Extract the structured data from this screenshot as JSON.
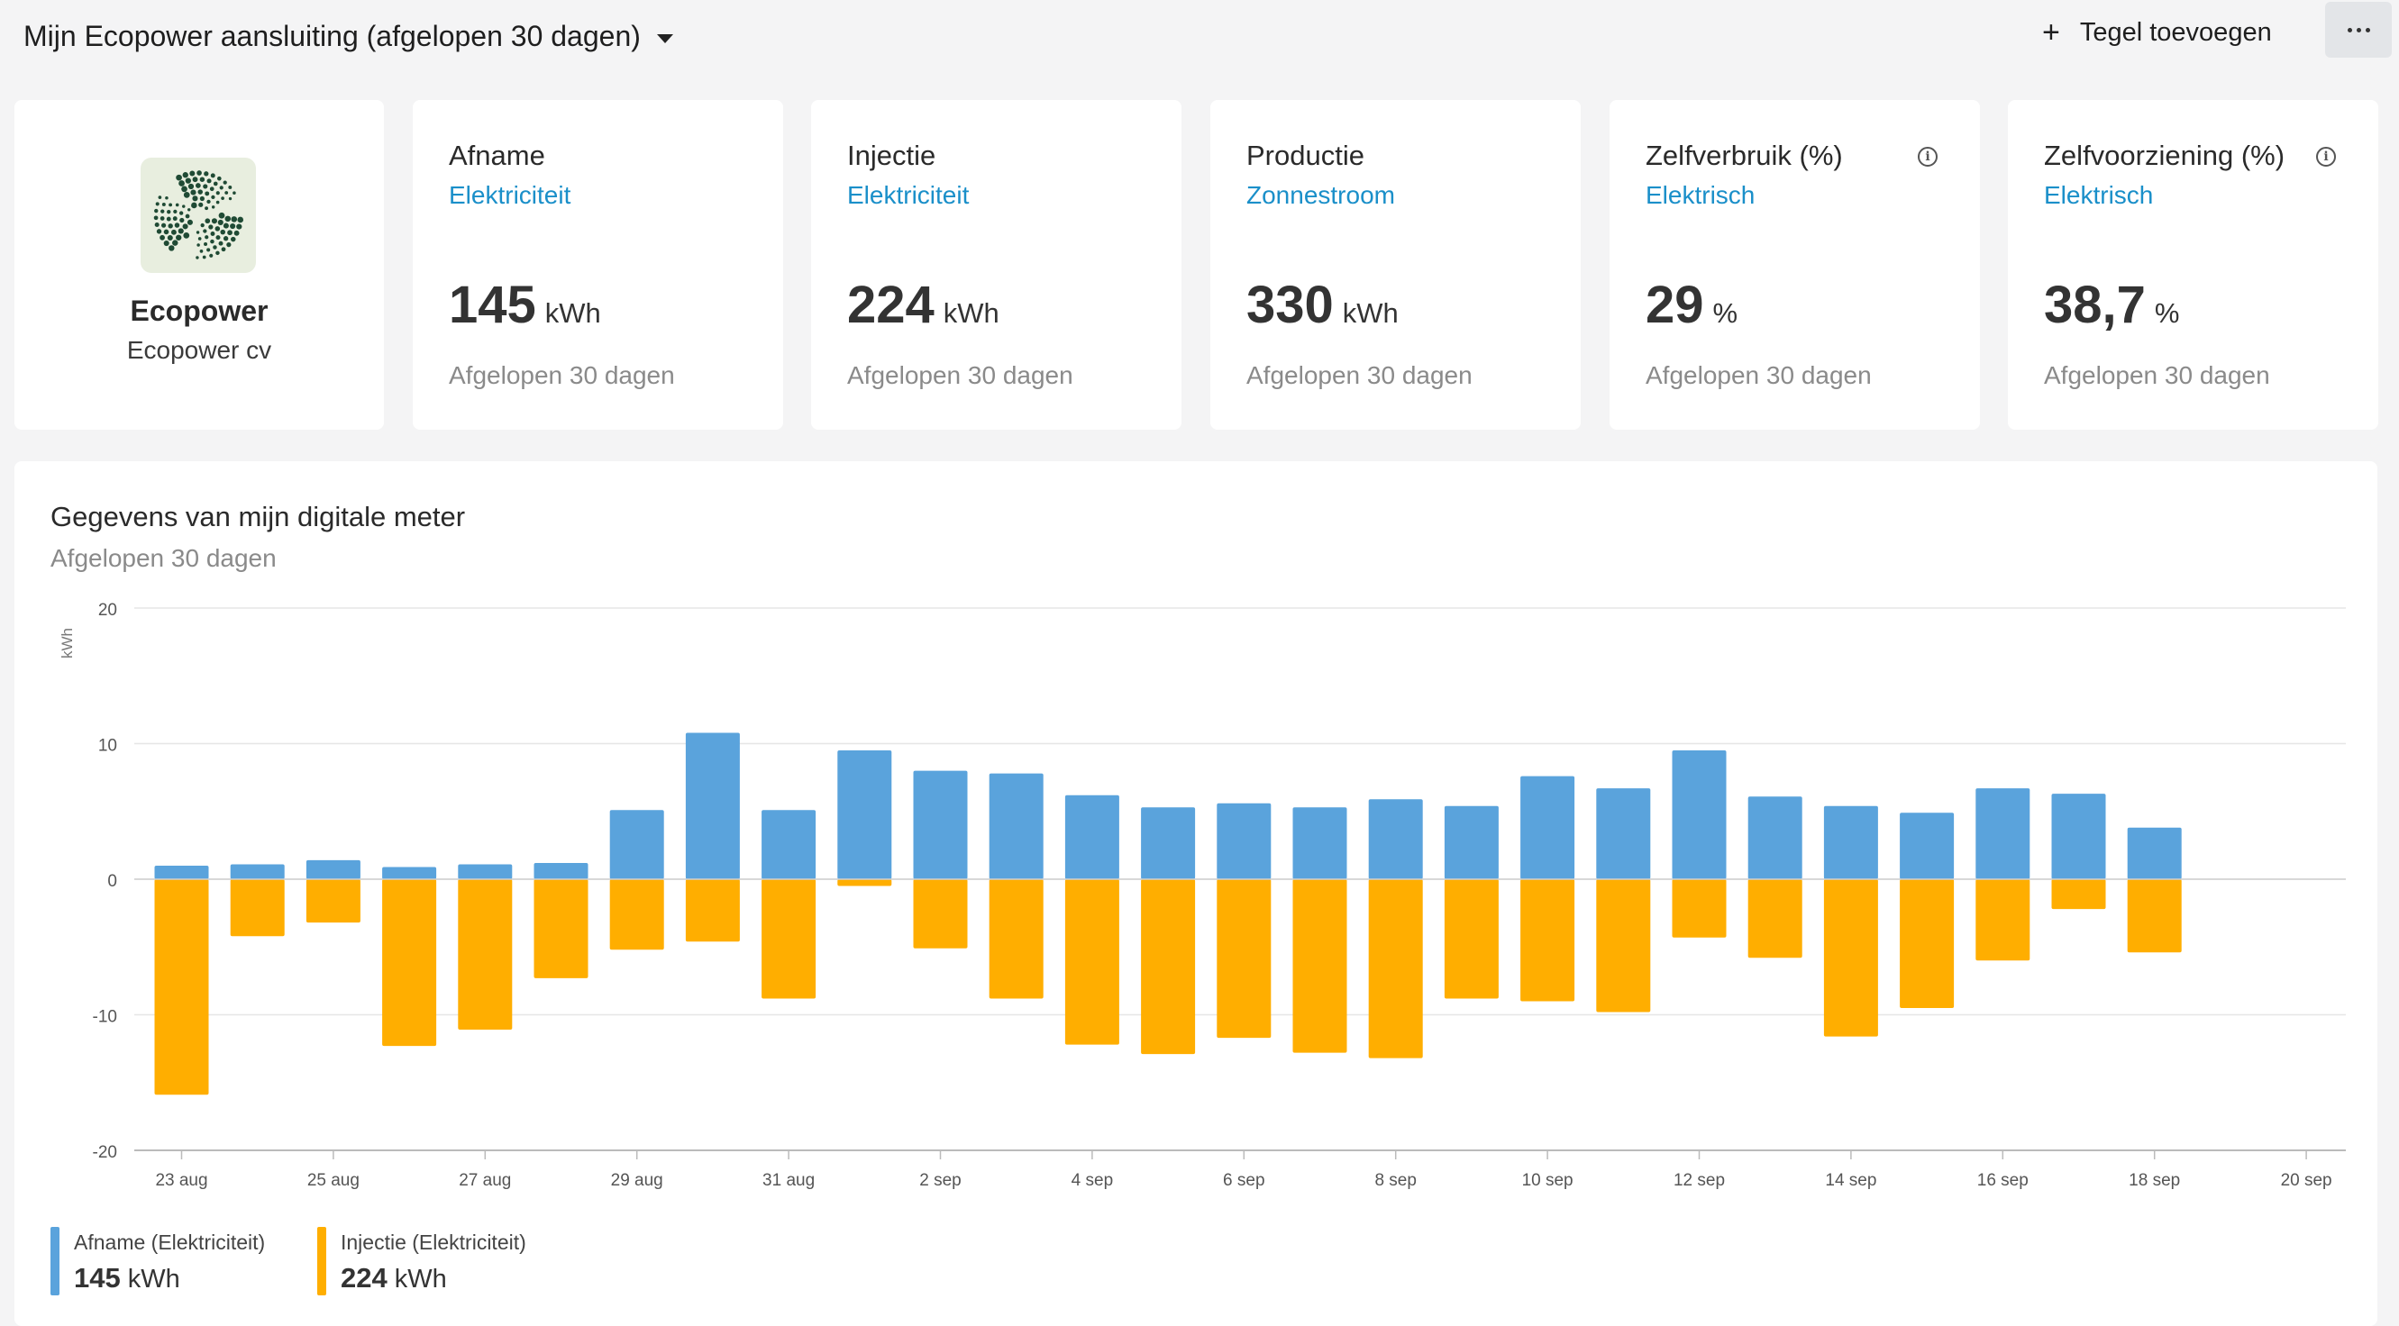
{
  "header": {
    "title": "Mijn Ecopower aansluiting (afgelopen 30 dagen)",
    "add_tile_label": "Tegel toevoegen"
  },
  "brand": {
    "name": "Ecopower",
    "company": "Ecopower cv"
  },
  "cards": [
    {
      "title": "Afname",
      "subtitle": "Elektriciteit",
      "value": "145",
      "unit": "kWh",
      "period": "Afgelopen 30 dagen",
      "info": false
    },
    {
      "title": "Injectie",
      "subtitle": "Elektriciteit",
      "value": "224",
      "unit": "kWh",
      "period": "Afgelopen 30 dagen",
      "info": false
    },
    {
      "title": "Productie",
      "subtitle": "Zonnestroom",
      "value": "330",
      "unit": "kWh",
      "period": "Afgelopen 30 dagen",
      "info": false
    },
    {
      "title": "Zelfverbruik (%)",
      "subtitle": "Elektrisch",
      "value": "29",
      "unit": "%",
      "period": "Afgelopen 30 dagen",
      "info": true
    },
    {
      "title": "Zelfvoorziening (%)",
      "subtitle": "Elektrisch",
      "value": "38,7",
      "unit": "%",
      "period": "Afgelopen 30 dagen",
      "info": true
    }
  ],
  "chart": {
    "title": "Gegevens van mijn digitale meter",
    "subtitle": "Afgelopen 30 dagen"
  },
  "legend": [
    {
      "name": "Afname (Elektriciteit)",
      "value": "145",
      "unit": "kWh",
      "color": "#5aa3dc"
    },
    {
      "name": "Injectie (Elektriciteit)",
      "value": "224",
      "unit": "kWh",
      "color": "#ffae00"
    }
  ],
  "chart_data": {
    "type": "bar",
    "title": "Gegevens van mijn digitale meter",
    "subtitle": "Afgelopen 30 dagen",
    "ylabel": "kWh",
    "ylim": [
      -20,
      20
    ],
    "yticks": [
      20,
      10,
      0,
      -10,
      -20
    ],
    "grid": true,
    "legend_position": "bottom-left",
    "x_tick_labels": [
      "23 aug",
      "25 aug",
      "27 aug",
      "29 aug",
      "31 aug",
      "2 sep",
      "4 sep",
      "6 sep",
      "8 sep",
      "10 sep",
      "12 sep",
      "14 sep",
      "16 sep",
      "18 sep",
      "20 sep"
    ],
    "categories": [
      "23 aug",
      "24 aug",
      "25 aug",
      "26 aug",
      "27 aug",
      "28 aug",
      "29 aug",
      "30 aug",
      "31 aug",
      "1 sep",
      "2 sep",
      "3 sep",
      "4 sep",
      "5 sep",
      "6 sep",
      "7 sep",
      "8 sep",
      "9 sep",
      "10 sep",
      "11 sep",
      "12 sep",
      "13 sep",
      "14 sep",
      "15 sep",
      "16 sep",
      "17 sep",
      "18 sep"
    ],
    "series": [
      {
        "name": "Afname (Elektriciteit)",
        "color": "#5aa3dc",
        "values": [
          1.0,
          1.1,
          1.4,
          0.9,
          1.1,
          1.2,
          5.1,
          10.8,
          5.1,
          9.5,
          8.0,
          7.8,
          6.2,
          5.3,
          5.6,
          5.3,
          5.9,
          5.4,
          7.6,
          6.7,
          9.5,
          6.1,
          5.4,
          4.9,
          6.7,
          6.3,
          3.8
        ]
      },
      {
        "name": "Injectie (Elektriciteit)",
        "color": "#ffae00",
        "values": [
          -15.9,
          -4.2,
          -3.2,
          -12.3,
          -11.1,
          -7.3,
          -5.2,
          -4.6,
          -8.8,
          -0.5,
          -5.1,
          -8.8,
          -12.2,
          -12.9,
          -11.7,
          -12.8,
          -13.2,
          -8.8,
          -9.0,
          -9.8,
          -4.3,
          -5.8,
          -11.6,
          -9.5,
          -6.0,
          -2.2,
          -5.4
        ]
      }
    ]
  }
}
